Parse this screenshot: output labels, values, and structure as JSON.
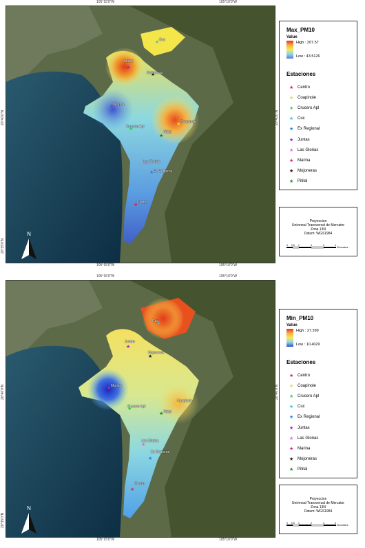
{
  "top": {
    "legend": {
      "title": "Max_PM10",
      "value_label": "Value",
      "high_label": "High : 207.57",
      "low_label": "Low : 43.5126"
    },
    "coords": {
      "top_left": "105°15'0\"W",
      "top_right": "105°10'0\"W",
      "bottom_left": "105°15'0\"W",
      "bottom_right": "105°10'0\"W",
      "left_upper": "20°40'0\"N",
      "left_lower": "20°35'0\"N",
      "right_upper": "20°40'0\"N",
      "right_lower": "20°35'0\"N"
    },
    "station_labels": {
      "cuc": "Cuc",
      "juntas": "Juntas",
      "mojoneras": "Mojoneras",
      "marina": "Marina",
      "coapinole": "Coapinole",
      "crucero": "Crucero Apl",
      "pitilal": "Pitilal",
      "las_glorias": "Las Glorias",
      "ex_regional": "Ex Regional",
      "centro": "Centro"
    },
    "hotspot": "Juntas / Coapinole",
    "legend_colors": {
      "high": "#e8311e",
      "mid": "#f7e85a",
      "low": "#5b7be0"
    }
  },
  "bottom": {
    "legend": {
      "title": "Min_PM10",
      "value_label": "Value",
      "high_label": "High : 27.399",
      "low_label": "Low : 10.4029"
    },
    "coords": {
      "top_left": "105°15'0\"W",
      "top_right": "105°10'0\"W",
      "bottom_left": "105°15'0\"W",
      "bottom_right": "105°10'0\"W",
      "left_upper": "20°40'0\"N",
      "left_lower": "20°35'0\"N",
      "right_upper": "20°40'0\"N",
      "right_lower": "20°35'0\"N"
    },
    "station_labels": {
      "cuc": "Cuc",
      "juntas": "Juntas",
      "mojoneras": "Mojoneras",
      "marina": "Marina",
      "coapinole": "Coapinole",
      "crucero": "Crucero Apl",
      "pitilal": "Pitilal",
      "las_glorias": "Las Glorias",
      "ex_regional": "Ex Regional",
      "centro": "Centro"
    }
  },
  "estaciones": {
    "title": "Estaciones",
    "items": [
      {
        "name": "Centro",
        "color": "#e0204a"
      },
      {
        "name": "Coapinole",
        "color": "#e8e020"
      },
      {
        "name": "Crucero Apl",
        "color": "#30d040"
      },
      {
        "name": "Cuc",
        "color": "#30c8d8"
      },
      {
        "name": "Ex Regional",
        "color": "#2080e0"
      },
      {
        "name": "Juntas",
        "color": "#a020c0"
      },
      {
        "name": "Las Glorias",
        "color": "#e060e0"
      },
      {
        "name": "Marina",
        "color": "#d02080"
      },
      {
        "name": "Mojoneras",
        "color": "#111111"
      },
      {
        "name": "Pitilal",
        "color": "#208020"
      }
    ]
  },
  "projection": {
    "line1": "Proyeccion",
    "line2": "Universal Transversal de Mercator",
    "line3": "Zona 13N",
    "line4": "Datum: WGS1984"
  },
  "scale": {
    "ticks": [
      "0",
      "0.5",
      "1",
      "2",
      "3",
      "4"
    ],
    "unit": "Kilometers"
  },
  "north_label": "N"
}
